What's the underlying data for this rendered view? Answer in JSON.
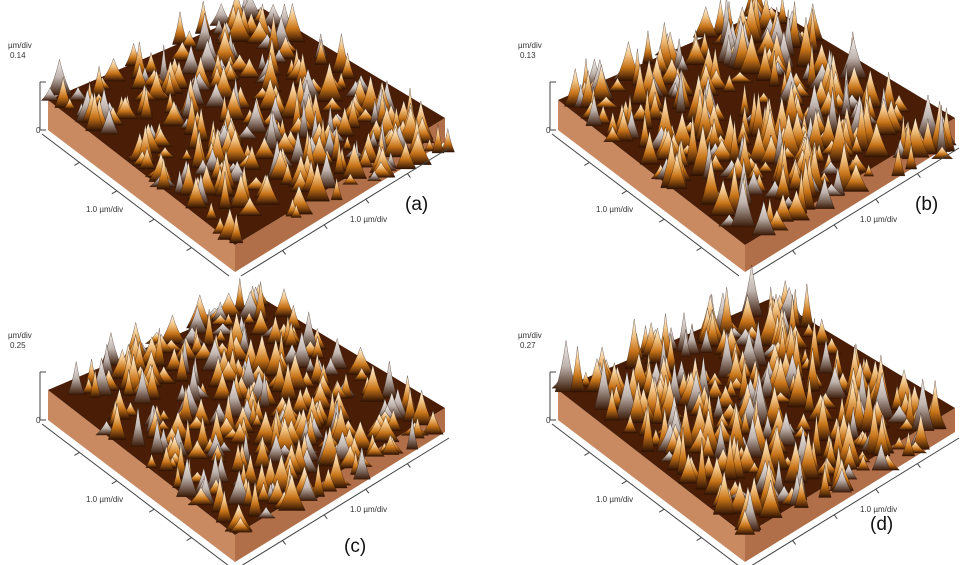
{
  "panels": [
    {
      "axis_unit": "µm/div",
      "z_scale": "0.14",
      "z_zero": "0",
      "x_scale": "1.0 µm/div",
      "y_scale": "1.0 µm/div",
      "label": "(a)"
    },
    {
      "axis_unit": "µm/div",
      "z_scale": "0.13",
      "z_zero": "0",
      "x_scale": "1.0 µm/div",
      "y_scale": "1.0 µm/div",
      "label": "(b)"
    },
    {
      "axis_unit": "µm/div",
      "z_scale": "0.25",
      "z_zero": "0",
      "x_scale": "1.0 µm/div",
      "y_scale": "1.0 µm/div",
      "label": "(c)"
    },
    {
      "axis_unit": "µm/div",
      "z_scale": "0.27",
      "z_zero": "0",
      "x_scale": "1.0 µm/div",
      "y_scale": "1.0 µm/div",
      "label": "(d)"
    }
  ]
}
